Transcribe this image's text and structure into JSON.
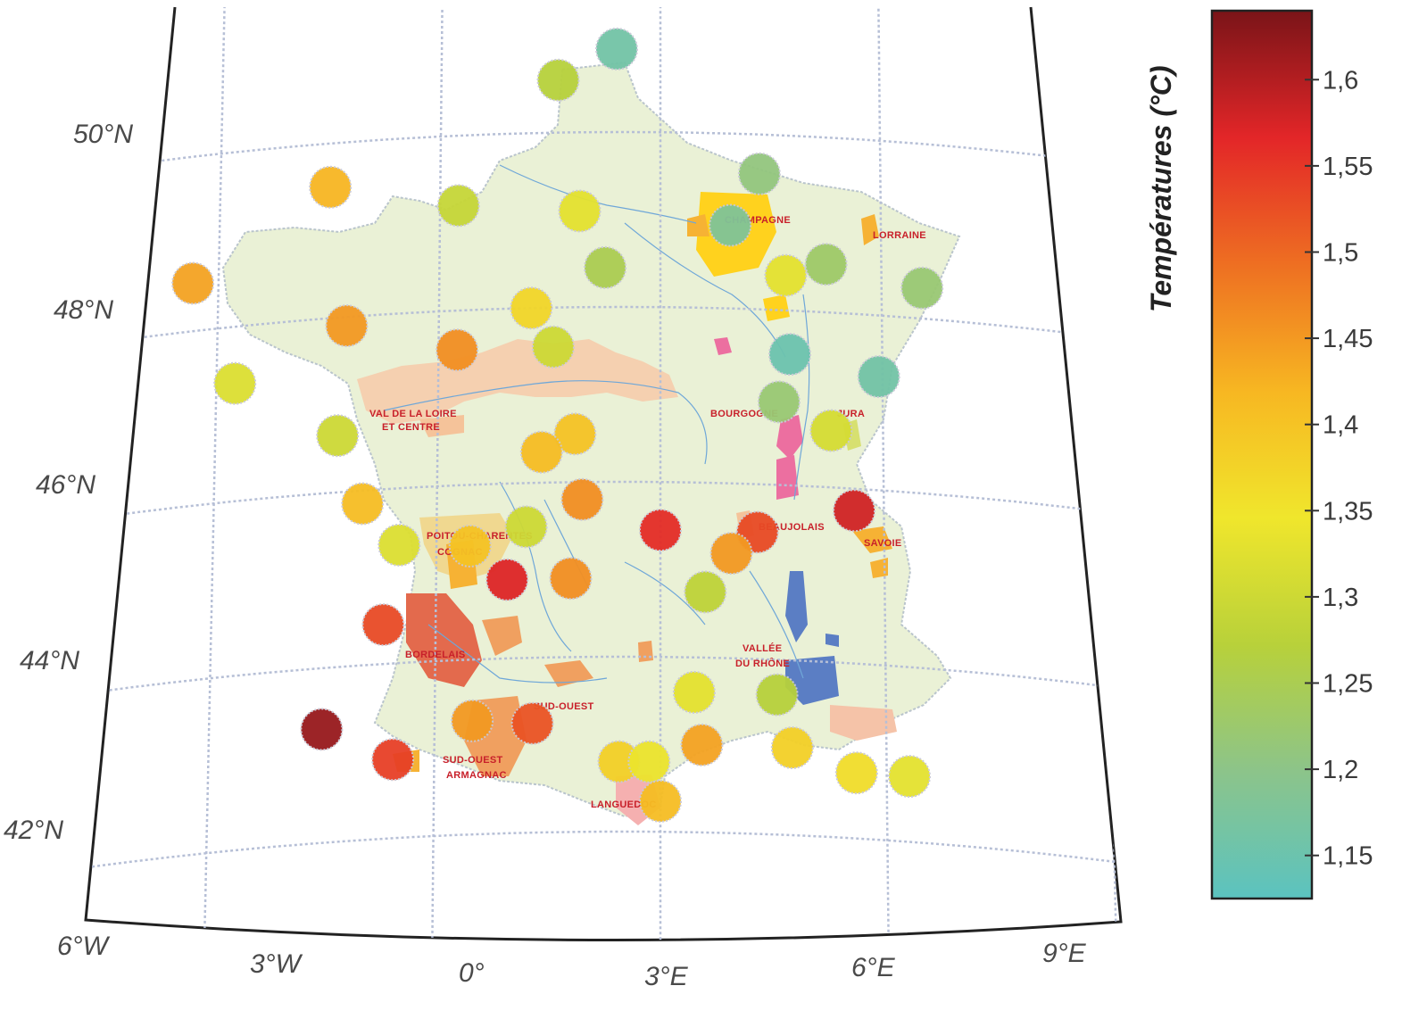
{
  "map": {
    "lat_labels": [
      "50°N",
      "48°N",
      "46°N",
      "44°N",
      "42°N"
    ],
    "lon_labels": [
      "6°W",
      "3°W",
      "0°",
      "3°E",
      "6°E",
      "9°E"
    ],
    "regions": {
      "champagne": "CHAMPAGNE",
      "lorraine": "LORRAINE",
      "loire": "VAL DE LA LOIRE",
      "loire2": "ET CENTRE",
      "bourgogne": "BOURGOGNE",
      "jura": "JURA",
      "charentes": "POITOU-CHARENTES",
      "cognac": "COGNAC",
      "beaujolais": "BEAUJOLAIS",
      "savoie": "SAVOIE",
      "bordelais": "BORDELAIS",
      "rhone1": "VALLÉE",
      "rhone2": "DU RHÔNE",
      "sudouest": "SUD-OUEST",
      "sudouest2": "SUD-OUEST",
      "armagnac": "ARMAGNAC",
      "languedoc": "LANGUEDOC"
    }
  },
  "colorbar": {
    "title": "Températures (°C)",
    "min": 1.125,
    "max": 1.64,
    "ticks": [
      {
        "value": 1.6,
        "label": "1,6"
      },
      {
        "value": 1.55,
        "label": "1,55"
      },
      {
        "value": 1.5,
        "label": "1,5"
      },
      {
        "value": 1.45,
        "label": "1,45"
      },
      {
        "value": 1.4,
        "label": "1,4"
      },
      {
        "value": 1.35,
        "label": "1,35"
      },
      {
        "value": 1.3,
        "label": "1,3"
      },
      {
        "value": 1.25,
        "label": "1,25"
      },
      {
        "value": 1.2,
        "label": "1,2"
      },
      {
        "value": 1.15,
        "label": "1,15"
      }
    ],
    "stops": [
      "#5bc3c0",
      "#8cc48a",
      "#b8d13a",
      "#f0e62c",
      "#f7b722",
      "#ee6f22",
      "#e32628",
      "#7a1418"
    ]
  },
  "stations": [
    {
      "lon": 2.4,
      "lat": 50.95,
      "v": 1.16
    },
    {
      "lon": 1.6,
      "lat": 50.6,
      "v": 1.27
    },
    {
      "lon": 4.35,
      "lat": 49.55,
      "v": 1.21
    },
    {
      "lon": -1.5,
      "lat": 49.5,
      "v": 1.42
    },
    {
      "lon": 0.25,
      "lat": 49.2,
      "v": 1.29
    },
    {
      "lon": 1.9,
      "lat": 49.1,
      "v": 1.33
    },
    {
      "lon": 3.95,
      "lat": 48.95,
      "v": 1.18
    },
    {
      "lon": 5.25,
      "lat": 48.55,
      "v": 1.23
    },
    {
      "lon": 6.55,
      "lat": 48.35,
      "v": 1.22
    },
    {
      "lon": -3.35,
      "lat": 48.55,
      "v": 1.44
    },
    {
      "lon": 2.25,
      "lat": 48.45,
      "v": 1.25
    },
    {
      "lon": 4.7,
      "lat": 48.4,
      "v": 1.33
    },
    {
      "lon": 1.25,
      "lat": 48.0,
      "v": 1.37
    },
    {
      "lon": -1.25,
      "lat": 47.9,
      "v": 1.45
    },
    {
      "lon": 1.55,
      "lat": 47.55,
      "v": 1.3
    },
    {
      "lon": 0.25,
      "lat": 47.55,
      "v": 1.46
    },
    {
      "lon": 4.75,
      "lat": 47.5,
      "v": 1.15
    },
    {
      "lon": -2.75,
      "lat": 47.35,
      "v": 1.32
    },
    {
      "lon": 5.95,
      "lat": 47.3,
      "v": 1.16
    },
    {
      "lon": 4.6,
      "lat": 46.95,
      "v": 1.22
    },
    {
      "lon": -1.35,
      "lat": 46.65,
      "v": 1.3
    },
    {
      "lon": 5.3,
      "lat": 46.65,
      "v": 1.31
    },
    {
      "lon": 1.85,
      "lat": 46.55,
      "v": 1.4
    },
    {
      "lon": 1.4,
      "lat": 46.35,
      "v": 1.41
    },
    {
      "lon": -1.0,
      "lat": 45.85,
      "v": 1.41
    },
    {
      "lon": 1.95,
      "lat": 45.8,
      "v": 1.46
    },
    {
      "lon": 5.6,
      "lat": 45.75,
      "v": 1.58
    },
    {
      "lon": 1.2,
      "lat": 45.5,
      "v": 1.3
    },
    {
      "lon": 3.0,
      "lat": 45.45,
      "v": 1.56
    },
    {
      "lon": 4.3,
      "lat": 45.45,
      "v": 1.53
    },
    {
      "lon": -0.5,
      "lat": 45.35,
      "v": 1.32
    },
    {
      "lon": 0.45,
      "lat": 45.3,
      "v": 1.4
    },
    {
      "lon": 3.95,
      "lat": 45.2,
      "v": 1.45
    },
    {
      "lon": 0.95,
      "lat": 44.9,
      "v": 1.57
    },
    {
      "lon": 1.8,
      "lat": 44.9,
      "v": 1.46
    },
    {
      "lon": 3.6,
      "lat": 44.75,
      "v": 1.28
    },
    {
      "lon": -0.7,
      "lat": 44.45,
      "v": 1.53
    },
    {
      "lon": 3.45,
      "lat": 43.6,
      "v": 1.33
    },
    {
      "lon": 4.55,
      "lat": 43.6,
      "v": 1.27
    },
    {
      "lon": -1.5,
      "lat": 43.3,
      "v": 1.62
    },
    {
      "lon": 0.5,
      "lat": 43.3,
      "v": 1.45
    },
    {
      "lon": 1.3,
      "lat": 43.25,
      "v": 1.52
    },
    {
      "lon": 3.55,
      "lat": 43.0,
      "v": 1.44
    },
    {
      "lon": 4.75,
      "lat": 43.0,
      "v": 1.38
    },
    {
      "lon": -0.55,
      "lat": 42.9,
      "v": 1.54
    },
    {
      "lon": 6.3,
      "lat": 42.75,
      "v": 1.33
    },
    {
      "lon": 2.45,
      "lat": 42.8,
      "v": 1.38
    },
    {
      "lon": 2.85,
      "lat": 42.8,
      "v": 1.34
    },
    {
      "lon": 5.6,
      "lat": 42.75,
      "v": 1.36
    },
    {
      "lon": 3.0,
      "lat": 42.35,
      "v": 1.41
    }
  ]
}
